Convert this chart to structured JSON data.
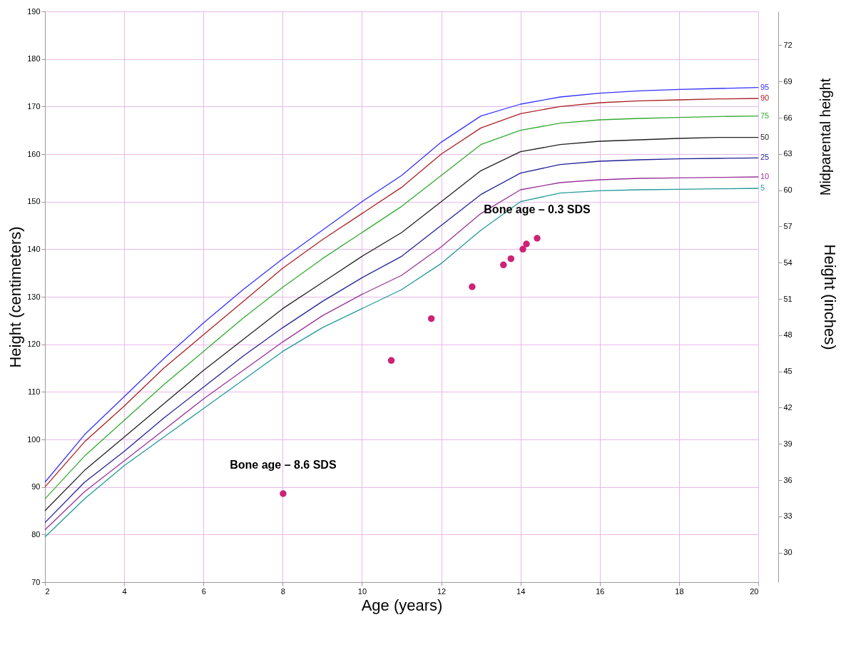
{
  "chart_data": {
    "type": "line",
    "xlabel": "Age (years)",
    "ylabel": "Height (centimeters)",
    "y2label": "Height (inches)",
    "x": [
      2,
      3,
      4,
      5,
      6,
      7,
      8,
      9,
      10,
      11,
      12,
      13,
      14,
      15,
      16,
      17,
      18,
      19,
      20
    ],
    "xlim": [
      2,
      20
    ],
    "xticks": [
      2,
      4,
      6,
      8,
      10,
      12,
      14,
      16,
      18,
      20
    ],
    "ylim": [
      70,
      190
    ],
    "yticks": [
      70,
      80,
      90,
      100,
      110,
      120,
      130,
      140,
      150,
      160,
      170,
      180,
      190
    ],
    "y2lim": [
      27.56,
      74.8
    ],
    "y2ticks": [
      30,
      33,
      36,
      39,
      42,
      45,
      48,
      51,
      54,
      57,
      60,
      63,
      66,
      69,
      72
    ],
    "grid": true,
    "line_style": "solid",
    "marker": "none",
    "series": [
      {
        "name": "95",
        "color": "#3333ff",
        "values": [
          91,
          101,
          109,
          117,
          124.5,
          131.5,
          138,
          144,
          150,
          155.5,
          162.5,
          168,
          170.5,
          172,
          172.8,
          173.3,
          173.6,
          173.8,
          174
        ]
      },
      {
        "name": "90",
        "color": "#aa2222",
        "values": [
          90,
          99.5,
          107,
          115,
          122,
          129,
          136,
          142,
          147.5,
          153,
          160,
          165.5,
          168.5,
          170,
          170.8,
          171.2,
          171.4,
          171.6,
          171.7
        ]
      },
      {
        "name": "75",
        "color": "#33aa33",
        "values": [
          87.5,
          96.5,
          104,
          111.5,
          118.5,
          125.5,
          132,
          138,
          143.5,
          149,
          155.5,
          162,
          165,
          166.5,
          167.2,
          167.5,
          167.7,
          167.9,
          168
        ]
      },
      {
        "name": "50",
        "color": "#222222",
        "values": [
          85,
          93.5,
          100.5,
          107.5,
          114.5,
          121,
          127.5,
          133,
          138.5,
          143.5,
          150,
          156.5,
          160.5,
          162,
          162.7,
          163,
          163.3,
          163.5,
          163.5
        ]
      },
      {
        "name": "25",
        "color": "#222299",
        "values": [
          82.5,
          91,
          97.5,
          104.5,
          111,
          117.5,
          123.5,
          129,
          134,
          138.5,
          145,
          151.5,
          156,
          157.8,
          158.5,
          158.8,
          159,
          159.1,
          159.2
        ]
      },
      {
        "name": "10",
        "color": "#993399",
        "values": [
          81,
          89,
          95.5,
          102,
          108.5,
          114.5,
          120.5,
          126,
          130.5,
          134.5,
          140.5,
          147.5,
          152.5,
          154,
          154.6,
          154.9,
          155,
          155.1,
          155.2
        ]
      },
      {
        "name": "5",
        "color": "#229999",
        "values": [
          79.5,
          87.5,
          94.5,
          100.5,
          106.5,
          112.5,
          118.5,
          123.5,
          127.5,
          131.5,
          137,
          144,
          150,
          151.8,
          152.3,
          152.5,
          152.6,
          152.7,
          152.8
        ]
      },
      {
        "type": "scatter",
        "marker": "circle",
        "color": "#cc2277",
        "x": [
          8.01,
          10.74,
          11.75,
          12.78,
          13.57,
          13.76,
          14.06,
          14.15,
          14.42
        ],
        "values": [
          88.6,
          116.6,
          125.4,
          132.1,
          136.7,
          138.0,
          140.0,
          141.1,
          142.3
        ]
      }
    ],
    "annotations": [
      {
        "text": "Bone age – 8.6 SDS",
        "x": 8.01,
        "y": 88.6
      },
      {
        "text": "Bone age – 0.3 SDS",
        "x": 14.42,
        "y": 142.3
      },
      "Midparental height"
    ]
  }
}
